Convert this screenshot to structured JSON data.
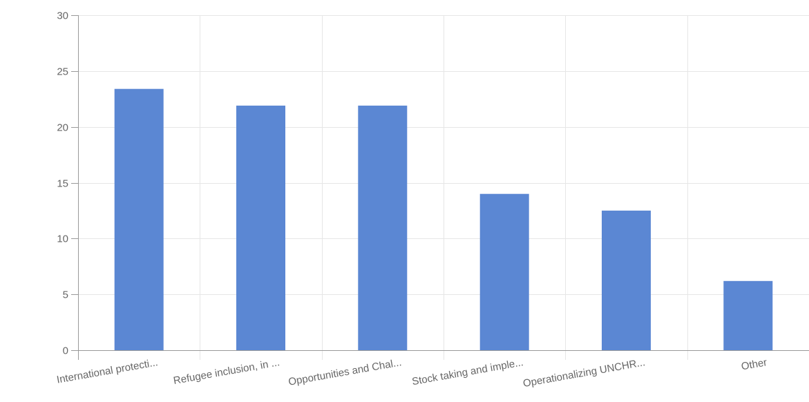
{
  "chart_data": {
    "type": "bar",
    "categories": [
      "International protecti...",
      "Refugee inclusion, in ...",
      "Opportunities and Chal...",
      "Stock taking and imple...",
      "Operationalizing UNCHR...",
      "Other"
    ],
    "values": [
      23.4,
      21.9,
      21.9,
      14.0,
      12.5,
      6.2
    ],
    "ylim": [
      0,
      30
    ],
    "yticks": [
      0,
      5,
      10,
      15,
      20,
      25,
      30
    ],
    "ytick_labels": [
      "0",
      "5",
      "10",
      "15",
      "20",
      "25",
      "30"
    ],
    "grid": true,
    "bar_color": "#5b87d3",
    "grid_color": "#e6e6e6",
    "axis_color": "#999999"
  }
}
